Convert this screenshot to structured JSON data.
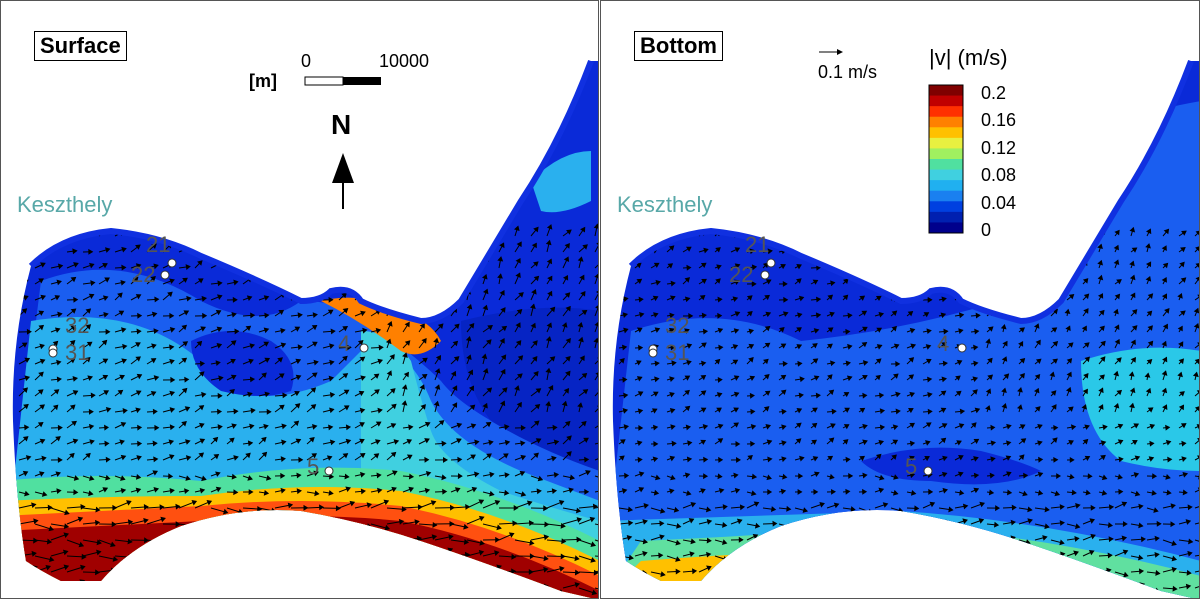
{
  "left_panel": {
    "title": "Surface",
    "town": "Keszthely",
    "scalebar": {
      "zero": "0",
      "max": "10000",
      "unit": "[m]"
    },
    "north": "N",
    "stations": [
      "21",
      "22",
      "32",
      "31",
      "4",
      "5"
    ]
  },
  "right_panel": {
    "title": "Bottom",
    "town": "Keszthely",
    "reference_vector": "0.1 m/s",
    "legend": {
      "title": "|v| (m/s)",
      "labels": [
        "0.2",
        "0.16",
        "0.12",
        "0.08",
        "0.04",
        "0"
      ],
      "colors": [
        "#800000",
        "#c00000",
        "#ff3000",
        "#ff8000",
        "#ffc000",
        "#e8f040",
        "#a0f060",
        "#50e0a0",
        "#40d0e0",
        "#20b0f0",
        "#1a80f0",
        "#0040e0",
        "#0020b0",
        "#00008c"
      ]
    },
    "stations": [
      "21",
      "22",
      "32",
      "31",
      "4",
      "5"
    ]
  },
  "colors": {
    "low": "#0a2ad8",
    "mid": "#1a5ef0",
    "light": "#2ac8e8",
    "green": "#40e090",
    "hot": "#ff6010",
    "red": "#a00000"
  }
}
